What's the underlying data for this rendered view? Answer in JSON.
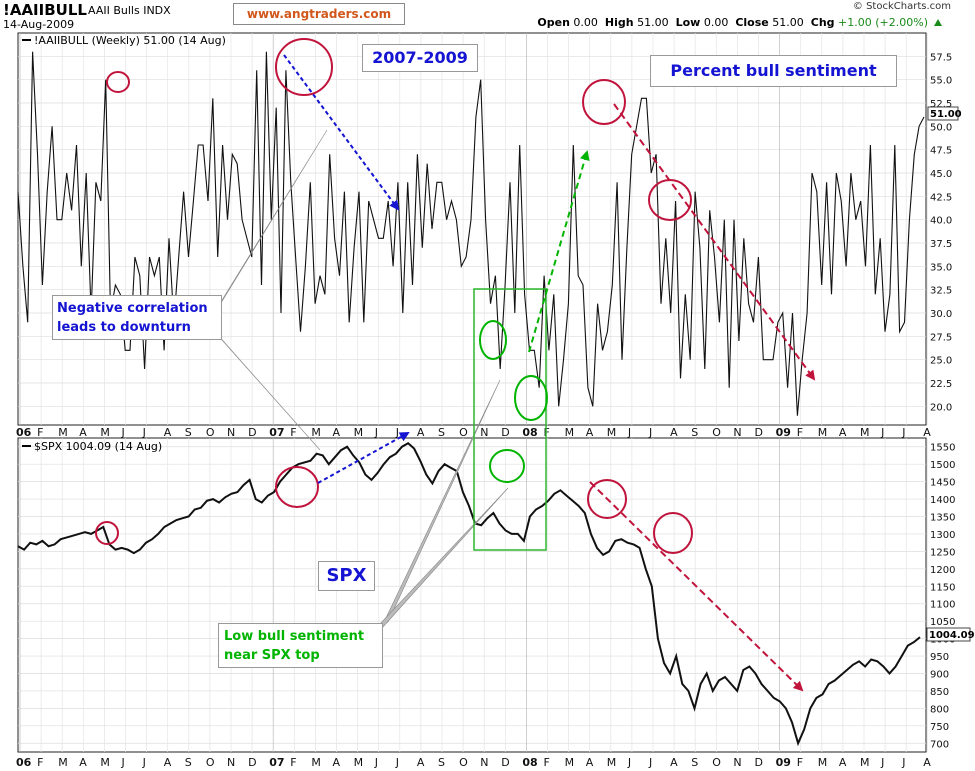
{
  "header": {
    "symbol": "!AAIIBULL",
    "description": "AAII Bulls INDX",
    "date": "14-Aug-2009",
    "watermark": "www.angtraders.com",
    "credit": "© StockCharts.com",
    "open_label": "Open",
    "open_value": "0.00",
    "high_label": "High",
    "high_value": "51.00",
    "low_label": "Low",
    "low_value": "0.00",
    "close_label": "Close",
    "close_value": "51.00",
    "chg_label": "Chg",
    "chg_value": "+1.00 (+2.00%)"
  },
  "annotations": {
    "range": "2007-2009",
    "percent_bull": "Percent bull sentiment",
    "negative_line1": "Negative correlation",
    "negative_line2": "leads to downturn",
    "spx": "SPX",
    "low_line1": "Low bull sentiment",
    "low_line2": "near SPX top"
  },
  "colors": {
    "red": "#c0143c",
    "blue": "#1414d2",
    "green": "#00b400",
    "green_box": "#2cb82c"
  },
  "chart_data": [
    {
      "type": "line",
      "panel": "top",
      "legend": "!AAIIBULL (Weekly) 51.00 (14 Aug)",
      "series": [
        {
          "name": "!AAIIBULL",
          "values": [
            43,
            35,
            29,
            58,
            47,
            33,
            43,
            50,
            40,
            40,
            45,
            41,
            48,
            35,
            45,
            30,
            44,
            42,
            55,
            30,
            33,
            32,
            26,
            26,
            36,
            34,
            24,
            36,
            34,
            36,
            26,
            38,
            29,
            36,
            43,
            36,
            42,
            48,
            48,
            42,
            53,
            36,
            48,
            40,
            47,
            46,
            40,
            38,
            36,
            56,
            33,
            58,
            40,
            52,
            30,
            56,
            44,
            36,
            28,
            35,
            44,
            31,
            34,
            32,
            47,
            38,
            34,
            43,
            29,
            37,
            43,
            29,
            42,
            40,
            38,
            38,
            42,
            35,
            44,
            30,
            44,
            33,
            47,
            37,
            46,
            39,
            44,
            44,
            40,
            42,
            40,
            35,
            36,
            40,
            51,
            55,
            40,
            31,
            34,
            24,
            33,
            44,
            30,
            48,
            32,
            26,
            26,
            22,
            34,
            26,
            32,
            20,
            25,
            31,
            48,
            34,
            33,
            22,
            20,
            31,
            26,
            28,
            33,
            44,
            25,
            37,
            47,
            50,
            53,
            53,
            45,
            47,
            31,
            38,
            30,
            42,
            23,
            32,
            25,
            43,
            37,
            24,
            41,
            36,
            29,
            40,
            22,
            40,
            27,
            38,
            31,
            29,
            36,
            25,
            25,
            25,
            29,
            30,
            22,
            30,
            19,
            25,
            30,
            45,
            43,
            33,
            44,
            32,
            45,
            42,
            35,
            45,
            40,
            42,
            35,
            48,
            32,
            38,
            28,
            32,
            48,
            28,
            29,
            40,
            47,
            50,
            51
          ]
        }
      ],
      "y_ticks": [
        57.5,
        55.0,
        52.5,
        50.0,
        47.5,
        45.0,
        42.5,
        40.0,
        37.5,
        35.0,
        32.5,
        30.0,
        27.5,
        25.0,
        22.5,
        20.0
      ],
      "last_value_label": "51.00",
      "x_ticks": [
        "06",
        "F",
        "M",
        "A",
        "M",
        "J",
        "J",
        "A",
        "S",
        "O",
        "N",
        "D",
        "07",
        "F",
        "M",
        "A",
        "M",
        "J",
        "J",
        "A",
        "S",
        "O",
        "N",
        "D",
        "08",
        "F",
        "M",
        "A",
        "M",
        "J",
        "J",
        "A",
        "S",
        "O",
        "N",
        "D",
        "09",
        "F",
        "M",
        "A",
        "M",
        "J",
        "J",
        "A"
      ],
      "ylim": [
        18,
        60
      ]
    },
    {
      "type": "line",
      "panel": "bottom",
      "legend": "$SPX 1004.09 (14 Aug)",
      "series": [
        {
          "name": "$SPX",
          "points": [
            [
              0,
              1265
            ],
            [
              2,
              1255
            ],
            [
              4,
              1275
            ],
            [
              6,
              1270
            ],
            [
              8,
              1280
            ],
            [
              10,
              1265
            ],
            [
              12,
              1270
            ],
            [
              14,
              1285
            ],
            [
              16,
              1290
            ],
            [
              18,
              1295
            ],
            [
              20,
              1300
            ],
            [
              22,
              1305
            ],
            [
              24,
              1300
            ],
            [
              26,
              1310
            ],
            [
              28,
              1320
            ],
            [
              30,
              1270
            ],
            [
              32,
              1255
            ],
            [
              34,
              1260
            ],
            [
              36,
              1255
            ],
            [
              38,
              1245
            ],
            [
              40,
              1255
            ],
            [
              42,
              1275
            ],
            [
              44,
              1285
            ],
            [
              46,
              1300
            ],
            [
              48,
              1320
            ],
            [
              50,
              1330
            ],
            [
              52,
              1340
            ],
            [
              54,
              1345
            ],
            [
              56,
              1350
            ],
            [
              58,
              1370
            ],
            [
              60,
              1375
            ],
            [
              62,
              1395
            ],
            [
              64,
              1400
            ],
            [
              66,
              1390
            ],
            [
              68,
              1405
            ],
            [
              70,
              1415
            ],
            [
              72,
              1420
            ],
            [
              74,
              1440
            ],
            [
              76,
              1455
            ],
            [
              78,
              1400
            ],
            [
              80,
              1390
            ],
            [
              82,
              1410
            ],
            [
              84,
              1420
            ],
            [
              86,
              1450
            ],
            [
              88,
              1470
            ],
            [
              90,
              1490
            ],
            [
              92,
              1500
            ],
            [
              94,
              1505
            ],
            [
              96,
              1510
            ],
            [
              98,
              1530
            ],
            [
              100,
              1525
            ],
            [
              102,
              1500
            ],
            [
              104,
              1520
            ],
            [
              106,
              1540
            ],
            [
              108,
              1550
            ],
            [
              110,
              1525
            ],
            [
              112,
              1505
            ],
            [
              114,
              1470
            ],
            [
              116,
              1455
            ],
            [
              118,
              1475
            ],
            [
              120,
              1500
            ],
            [
              122,
              1520
            ],
            [
              124,
              1530
            ],
            [
              126,
              1550
            ],
            [
              128,
              1560
            ],
            [
              130,
              1545
            ],
            [
              132,
              1510
            ],
            [
              134,
              1470
            ],
            [
              136,
              1445
            ],
            [
              138,
              1480
            ],
            [
              140,
              1500
            ],
            [
              142,
              1490
            ],
            [
              144,
              1480
            ],
            [
              146,
              1420
            ],
            [
              148,
              1380
            ],
            [
              150,
              1330
            ],
            [
              152,
              1325
            ],
            [
              154,
              1345
            ],
            [
              156,
              1360
            ],
            [
              158,
              1330
            ],
            [
              160,
              1310
            ],
            [
              162,
              1300
            ],
            [
              164,
              1300
            ],
            [
              166,
              1280
            ],
            [
              168,
              1350
            ],
            [
              170,
              1370
            ],
            [
              172,
              1380
            ],
            [
              174,
              1395
            ],
            [
              176,
              1415
            ],
            [
              178,
              1425
            ],
            [
              180,
              1410
            ],
            [
              182,
              1395
            ],
            [
              184,
              1380
            ],
            [
              186,
              1360
            ],
            [
              188,
              1300
            ],
            [
              190,
              1260
            ],
            [
              192,
              1240
            ],
            [
              194,
              1250
            ],
            [
              196,
              1280
            ],
            [
              198,
              1285
            ],
            [
              200,
              1275
            ],
            [
              202,
              1270
            ],
            [
              204,
              1260
            ],
            [
              206,
              1200
            ],
            [
              208,
              1150
            ],
            [
              210,
              1000
            ],
            [
              212,
              930
            ],
            [
              214,
              900
            ],
            [
              216,
              950
            ],
            [
              218,
              870
            ],
            [
              220,
              850
            ],
            [
              222,
              800
            ],
            [
              224,
              870
            ],
            [
              226,
              900
            ],
            [
              228,
              850
            ],
            [
              230,
              880
            ],
            [
              232,
              890
            ],
            [
              234,
              870
            ],
            [
              236,
              850
            ],
            [
              238,
              910
            ],
            [
              240,
              920
            ],
            [
              242,
              900
            ],
            [
              244,
              870
            ],
            [
              246,
              850
            ],
            [
              248,
              830
            ],
            [
              250,
              820
            ],
            [
              252,
              800
            ],
            [
              254,
              760
            ],
            [
              256,
              700
            ],
            [
              258,
              740
            ],
            [
              260,
              800
            ],
            [
              262,
              830
            ],
            [
              264,
              840
            ],
            [
              266,
              870
            ],
            [
              268,
              880
            ],
            [
              270,
              895
            ],
            [
              272,
              910
            ],
            [
              274,
              925
            ],
            [
              276,
              935
            ],
            [
              278,
              920
            ],
            [
              280,
              940
            ],
            [
              282,
              935
            ],
            [
              284,
              920
            ],
            [
              286,
              900
            ],
            [
              288,
              920
            ],
            [
              290,
              950
            ],
            [
              292,
              980
            ],
            [
              294,
              990
            ],
            [
              296,
              1004
            ]
          ]
        }
      ],
      "y_ticks": [
        1550,
        1500,
        1450,
        1400,
        1350,
        1300,
        1250,
        1200,
        1150,
        1100,
        1050,
        1000,
        950,
        900,
        850,
        800,
        750,
        700
      ],
      "last_value_label": "1004.09",
      "x_ticks": [
        "06",
        "F",
        "M",
        "A",
        "M",
        "J",
        "J",
        "A",
        "S",
        "O",
        "N",
        "D",
        "07",
        "F",
        "M",
        "A",
        "M",
        "J",
        "J",
        "A",
        "S",
        "O",
        "N",
        "D",
        "08",
        "F",
        "M",
        "A",
        "M",
        "J",
        "J",
        "A",
        "S",
        "O",
        "N",
        "D",
        "09",
        "F",
        "M",
        "A",
        "M",
        "J",
        "J",
        "A"
      ],
      "ylim": [
        675,
        1575
      ]
    }
  ]
}
